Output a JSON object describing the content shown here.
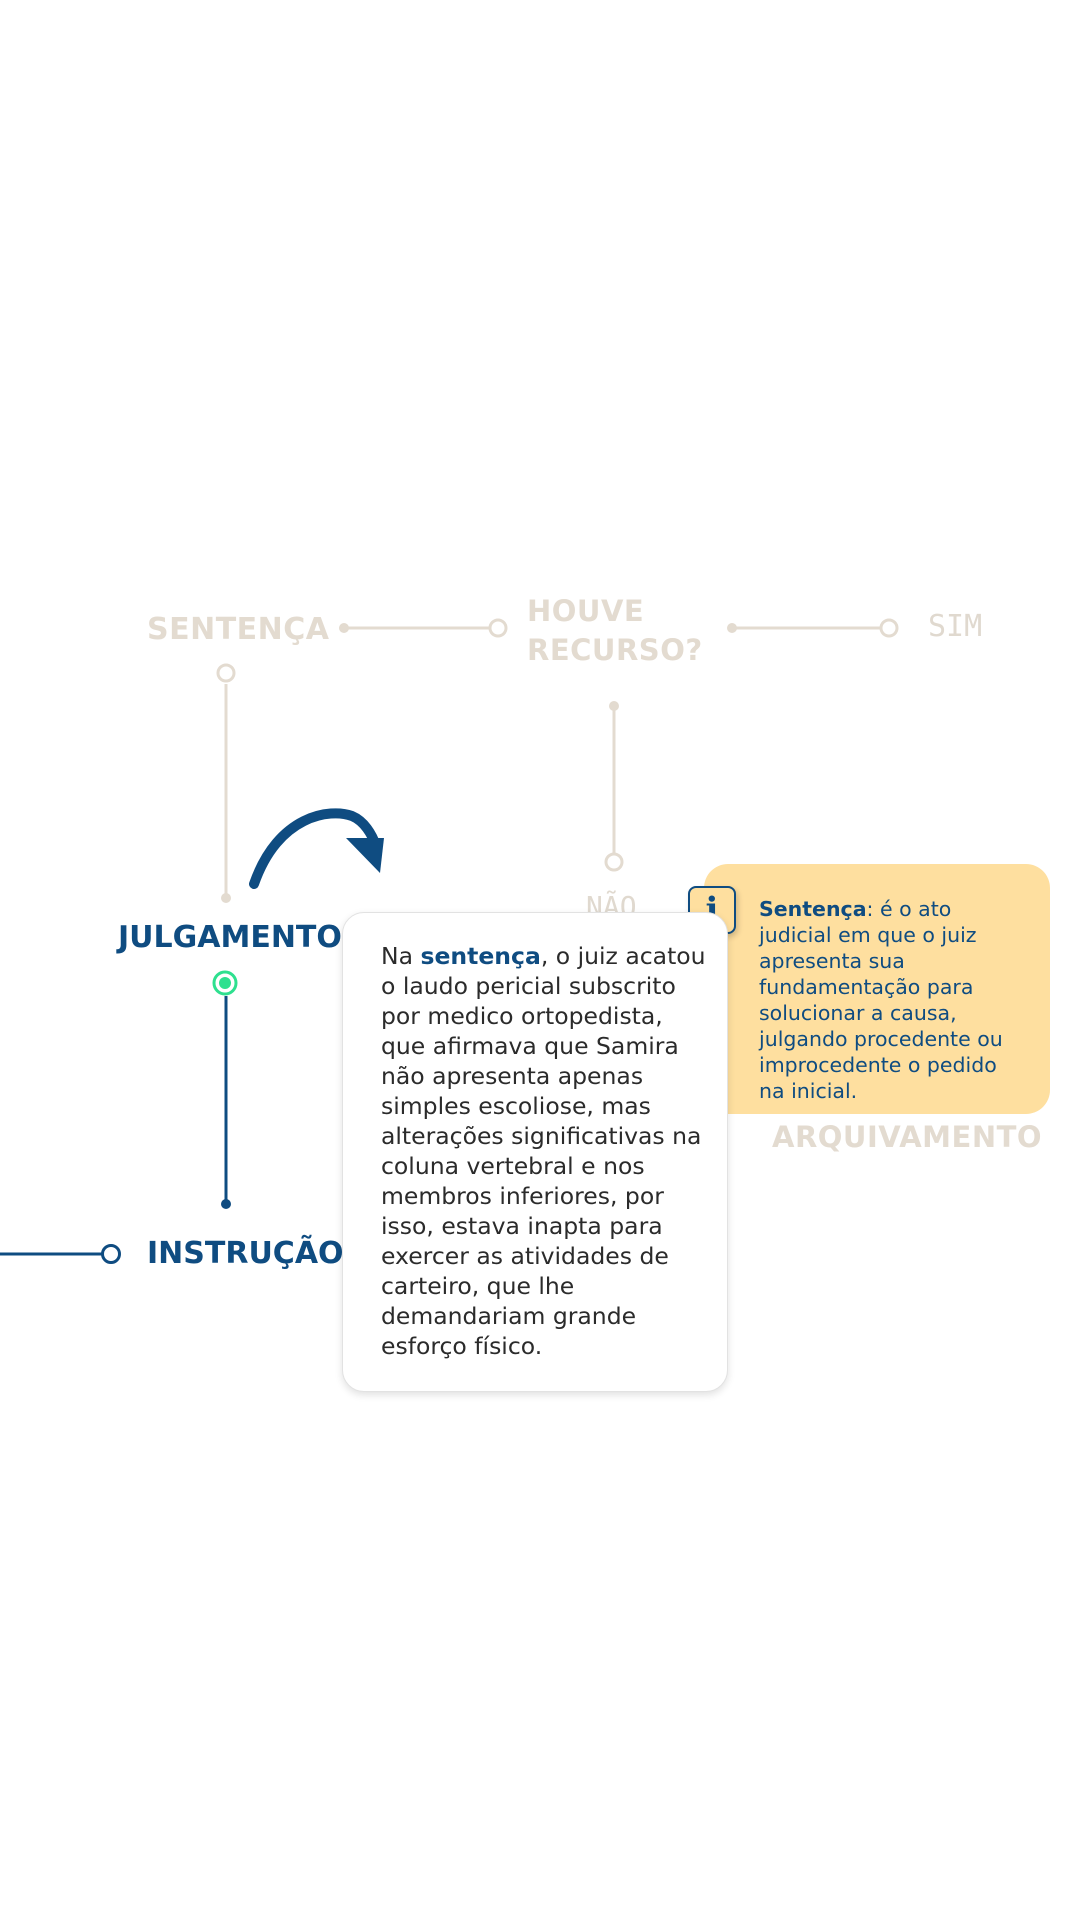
{
  "nodes": {
    "sentenca": "SENTENÇA",
    "houve_recurso": "HOUVE RECURSO?",
    "sim": "SIM",
    "nao": "NÃO",
    "julgamento": "JULGAMENTO",
    "instrucao": "INSTRUÇÃO",
    "arquivamento": "ARQUIVAMENTO"
  },
  "info_card": {
    "term": "Sentença",
    "definition": ": é o ato judicial em que o juiz apresenta sua fundamentação para solucionar a causa, julgando procedente ou improcedente o pedido na inicial."
  },
  "story_card": {
    "pre": "Na ",
    "term": "sentença",
    "post": ", o juiz acatou o laudo pericial subscrito por medico ortopedista, que afirmava que Samira não apresenta apenas simples escoliose, mas alterações significativas na coluna vertebral e nos membros inferiores, por isso, estava inapta para exercer as atividades de carteiro, que lhe demandariam grande esforço físico."
  },
  "icons": {
    "info": "i",
    "arrow": "curved-arrow-icon"
  },
  "colors": {
    "primary": "#0f4c81",
    "faded": "#e3dbd0",
    "active_dot": "#2ee08f",
    "info_bg": "#fedf9f"
  }
}
